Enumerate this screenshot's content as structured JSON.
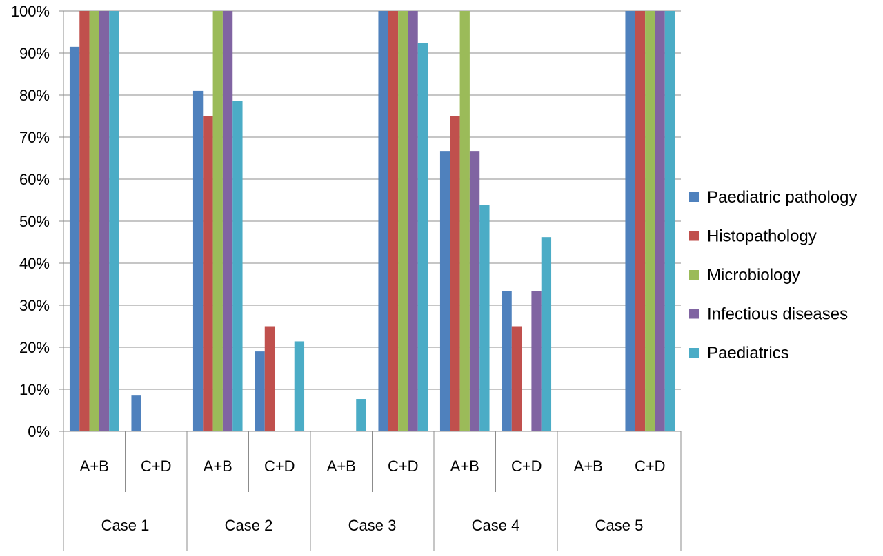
{
  "chart_data": {
    "type": "bar",
    "groups": [
      {
        "label": "Case 1",
        "subcategories": [
          "A+B",
          "C+D"
        ]
      },
      {
        "label": "Case 2",
        "subcategories": [
          "A+B",
          "C+D"
        ]
      },
      {
        "label": "Case 3",
        "subcategories": [
          "A+B",
          "C+D"
        ]
      },
      {
        "label": "Case 4",
        "subcategories": [
          "A+B",
          "C+D"
        ]
      },
      {
        "label": "Case 5",
        "subcategories": [
          "A+B",
          "C+D"
        ]
      }
    ],
    "categories": [
      "Case 1 A+B",
      "Case 1 C+D",
      "Case 2 A+B",
      "Case 2 C+D",
      "Case 3 A+B",
      "Case 3 C+D",
      "Case 4 A+B",
      "Case 4 C+D",
      "Case 5 A+B",
      "Case 5 C+D"
    ],
    "series": [
      {
        "name": "Paediatric pathology",
        "color": "#4F81BD",
        "values": [
          91.5,
          8.5,
          81,
          19,
          0,
          100,
          66.7,
          33.3,
          0,
          100
        ]
      },
      {
        "name": "Histopathology",
        "color": "#C0504D",
        "values": [
          100,
          0,
          75,
          25,
          0,
          100,
          75,
          25,
          0,
          100
        ]
      },
      {
        "name": "Microbiology",
        "color": "#9BBB59",
        "values": [
          100,
          0,
          100,
          0,
          0,
          100,
          100,
          0,
          0,
          100
        ]
      },
      {
        "name": "Infectious diseases",
        "color": "#8064A2",
        "values": [
          100,
          0,
          100,
          0,
          0,
          100,
          66.7,
          33.3,
          0,
          100
        ]
      },
      {
        "name": "Paediatrics",
        "color": "#4BACC6",
        "values": [
          100,
          0,
          78.6,
          21.4,
          7.7,
          92.3,
          53.8,
          46.2,
          0,
          100
        ]
      }
    ],
    "yticks": [
      "0%",
      "10%",
      "20%",
      "30%",
      "40%",
      "50%",
      "60%",
      "70%",
      "80%",
      "90%",
      "100%"
    ],
    "ylim": [
      0,
      100
    ],
    "grid": true,
    "legend_position": "right"
  }
}
